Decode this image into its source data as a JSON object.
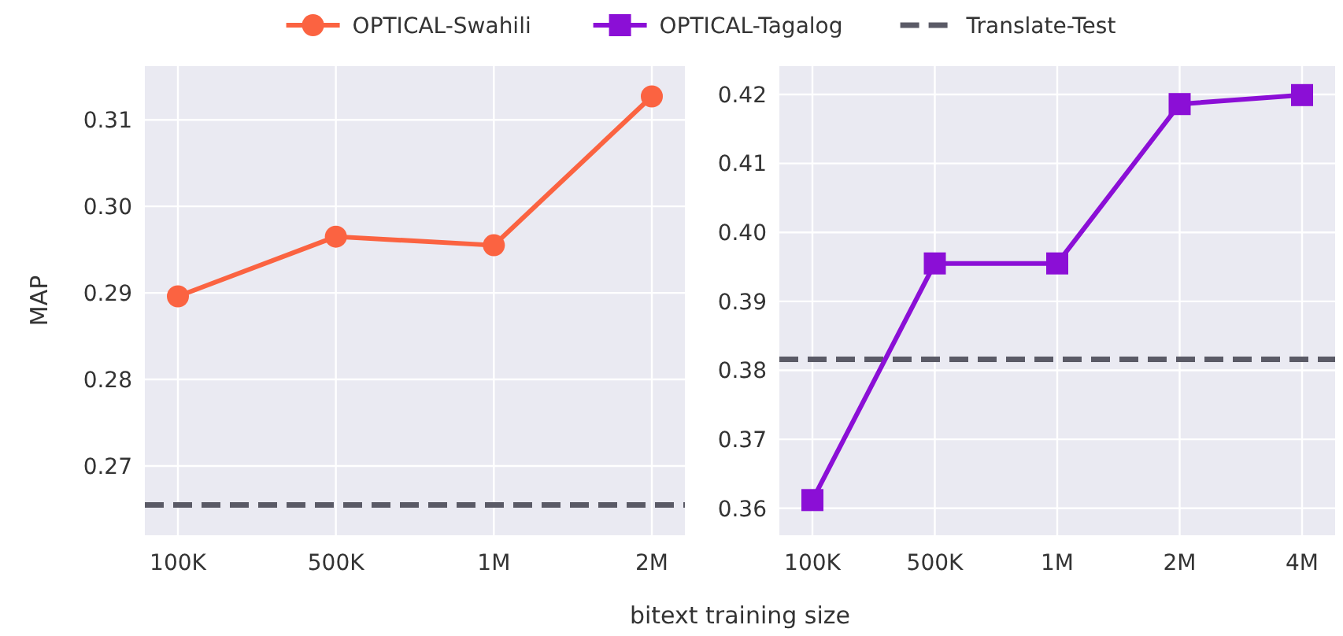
{
  "chart_data": [
    {
      "type": "line",
      "ylabel": "MAP",
      "xlabel": "bitext training size",
      "categories": [
        "100K",
        "500K",
        "1M",
        "2M"
      ],
      "series": [
        {
          "name": "OPTICAL-Swahili",
          "color": "#fb6341",
          "values": [
            0.2896,
            0.2965,
            0.2955,
            0.3127
          ],
          "marker": "circle"
        }
      ],
      "ylim": [
        0.262,
        0.3162
      ],
      "yticks": [
        0.27,
        0.28,
        0.29,
        {
          "value": 0.3,
          "label": "0.30"
        },
        0.31
      ],
      "grid": true,
      "legend": "top",
      "line_style": "solid",
      "ref_lines": [
        {
          "axis": "y",
          "value": 0.2655,
          "label": "Translate-Test",
          "color": "#5a5a66",
          "line_style": "dashed"
        }
      ]
    },
    {
      "type": "line",
      "categories": [
        "100K",
        "500K",
        "1M",
        "2M",
        "4M"
      ],
      "series": [
        {
          "name": "OPTICAL-Tagalog",
          "color": "#8b0fd6",
          "values": [
            0.3612,
            0.3955,
            0.3955,
            0.4186,
            0.4199
          ],
          "marker": "square"
        }
      ],
      "ylim": [
        0.3561,
        0.4241
      ],
      "yticks": [
        0.36,
        0.37,
        0.38,
        0.39,
        {
          "value": 0.4,
          "label": "0.40"
        },
        0.41,
        0.42
      ],
      "grid": true,
      "legend": "top",
      "line_style": "solid",
      "ref_lines": [
        {
          "axis": "y",
          "value": 0.3816,
          "label": null,
          "color": "#5a5a66",
          "line_style": "dashed"
        }
      ]
    }
  ]
}
